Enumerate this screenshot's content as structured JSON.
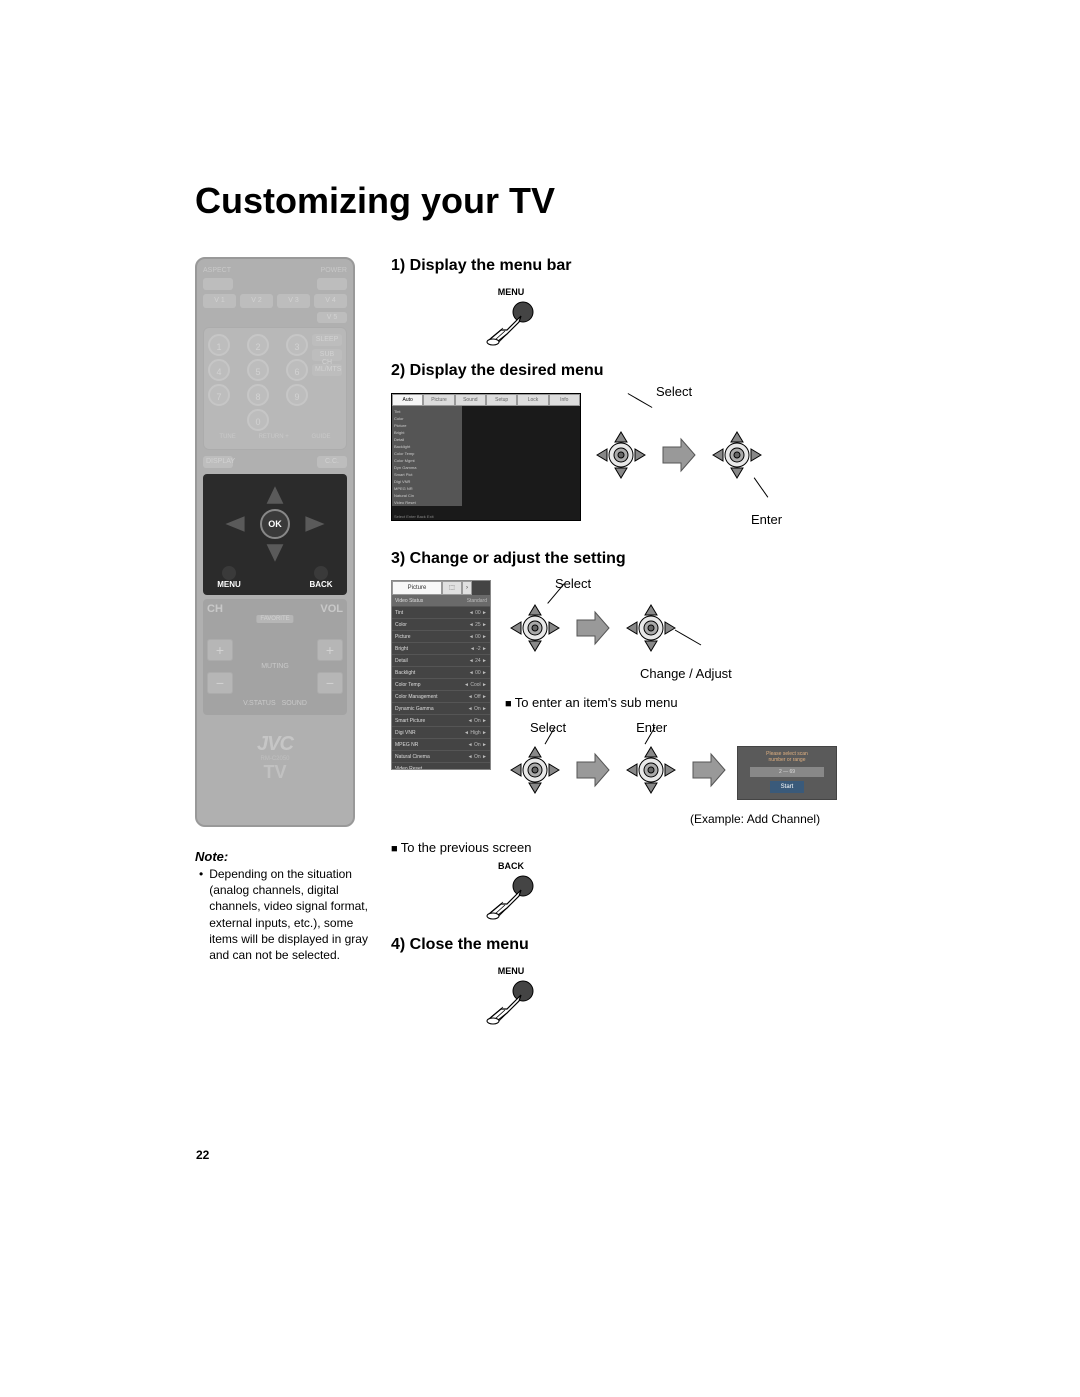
{
  "page": {
    "title": "Customizing your TV",
    "number": "22"
  },
  "remote": {
    "topLeft": "ASPECT",
    "topRight": "POWER",
    "vbuttons": [
      "V 1",
      "V 2",
      "V 3",
      "V 4"
    ],
    "v5": "V 5",
    "numpad": [
      "1",
      "2",
      "3",
      "4",
      "5",
      "6",
      "7",
      "8",
      "9",
      "0"
    ],
    "side": [
      "SLEEP",
      "SUB CH",
      "ML/MTS"
    ],
    "bottomNum": [
      "TUNE",
      "RETURN +",
      "GUIDE"
    ],
    "displayRow": [
      "DISPLAY",
      "C.C."
    ],
    "ok": "OK",
    "menuBack": [
      "MENU",
      "BACK"
    ],
    "chvol": {
      "ch": "CH",
      "vol": "VOL",
      "fav": "FAVORITE",
      "mute": "MUTING",
      "vstatus": "V.STATUS",
      "sound": "SOUND"
    },
    "brand": {
      "logo": "JVC",
      "model": "RM-C2050",
      "tv": "TV"
    }
  },
  "note": {
    "heading": "Note:",
    "text": "Depending on the situation (analog channels, digital channels, video signal format, external inputs, etc.), some items will be displayed in gray and can not be selected."
  },
  "steps": {
    "s1": "1)  Display the menu bar",
    "s2": "2)  Display the desired menu",
    "s3": "3)  Change or adjust the setting",
    "s4": "4)  Close the menu"
  },
  "labels": {
    "menu": "MENU",
    "back": "BACK",
    "select": "Select",
    "enter": "Enter",
    "changeAdjust": "Change / Adjust",
    "submenu": "To enter an item's sub menu",
    "prevScreen": "To the previous screen",
    "example": "(Example:  Add Channel)"
  },
  "tvScreen": {
    "tabs": [
      "Auto",
      "Picture",
      "Sound",
      "Setup",
      "Lock",
      "Info"
    ],
    "rows": [
      "Tint",
      "Color",
      "Picture",
      "Bright",
      "Detail",
      "Backlight",
      "Color Temp",
      "Color Mgmt",
      "Dyn Gamma",
      "Smart Pict",
      "Digi VNR",
      "MPEG NR",
      "Natural Cin",
      "Video Reset"
    ],
    "footer": "Select   Enter   Back   Exit"
  },
  "pictureMenu": {
    "tab1": "Picture",
    "rows": [
      {
        "k": "Video Status",
        "v": "Standard",
        "sel": true
      },
      {
        "k": "Tint",
        "v": "◄   00   ►"
      },
      {
        "k": "Color",
        "v": "◄   25   ►"
      },
      {
        "k": "Picture",
        "v": "◄   00   ►"
      },
      {
        "k": "Bright",
        "v": "◄   -2   ►"
      },
      {
        "k": "Detail",
        "v": "◄   24   ►"
      },
      {
        "k": "Backlight",
        "v": "◄   00   ►"
      },
      {
        "k": "Color Temp",
        "v": "◄  Cool  ►"
      },
      {
        "k": "Color Management",
        "v": "◄  Off  ►"
      },
      {
        "k": "Dynamic Gamma",
        "v": "◄  On  ►"
      },
      {
        "k": "Smart Picture",
        "v": "◄  On  ►"
      },
      {
        "k": "Digi VNR",
        "v": "◄ High ►"
      },
      {
        "k": "MPEG NR",
        "v": "◄  On  ►"
      },
      {
        "k": "Natural Cinema",
        "v": "◄  On  ►"
      },
      {
        "k": "Video Reset",
        "v": ""
      }
    ]
  },
  "exampleBox": {
    "line1": "Please select scan",
    "line2": "number or range",
    "scan": "2  —  69",
    "start": "Start"
  },
  "colors": {
    "remoteGrey": "#b0b0b0",
    "darkCluster": "#2b2b2b",
    "screenBg": "#1a1a1a",
    "menuBg": "#444444"
  }
}
